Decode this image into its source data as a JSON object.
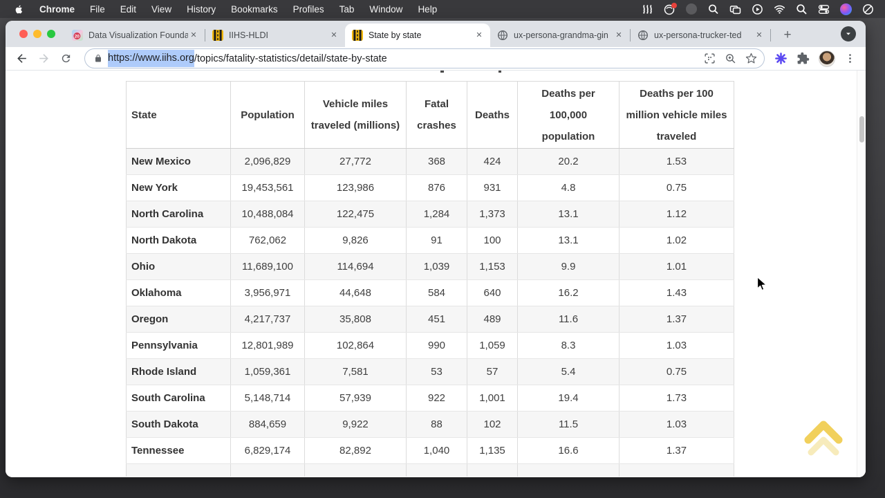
{
  "menubar": {
    "items": [
      "Chrome",
      "File",
      "Edit",
      "View",
      "History",
      "Bookmarks",
      "Profiles",
      "Tab",
      "Window",
      "Help"
    ],
    "status_icons": [
      "waves-icon",
      "badged-app-icon",
      "dimmed-app-icon",
      "zoom-lens-icon",
      "screen-mirroring-icon",
      "now-playing-icon",
      "wifi-icon",
      "spotlight-icon",
      "control-center-icon",
      "siri-icon",
      "focus-icon"
    ]
  },
  "tabbar": {
    "tabs": [
      {
        "title": "Data Visualization Founda",
        "favicon": "course-20-icon",
        "badge": "20"
      },
      {
        "title": "IIHS-HLDI",
        "favicon": "road-icon"
      },
      {
        "title": "State by state",
        "favicon": "road-icon",
        "active": true
      },
      {
        "title": "ux-persona-grandma-gin",
        "favicon": "globe-icon"
      },
      {
        "title": "ux-persona-trucker-ted",
        "favicon": "globe-icon"
      }
    ],
    "close_label": "✕",
    "new_tab_label": "+"
  },
  "toolbar": {
    "url_selected": "https://www.iihs.org",
    "url_rest": "/topics/fatality-statistics/detail/state-by-state"
  },
  "table": {
    "columns": [
      "State",
      "Population",
      "Vehicle miles traveled (millions)",
      "Fatal crashes",
      "Deaths",
      "Deaths per 100,000 population",
      "Deaths per 100 million vehicle miles traveled"
    ],
    "rows": [
      [
        "New Mexico",
        "2,096,829",
        "27,772",
        "368",
        "424",
        "20.2",
        "1.53"
      ],
      [
        "New York",
        "19,453,561",
        "123,986",
        "876",
        "931",
        "4.8",
        "0.75"
      ],
      [
        "North Carolina",
        "10,488,084",
        "122,475",
        "1,284",
        "1,373",
        "13.1",
        "1.12"
      ],
      [
        "North Dakota",
        "762,062",
        "9,826",
        "91",
        "100",
        "13.1",
        "1.02"
      ],
      [
        "Ohio",
        "11,689,100",
        "114,694",
        "1,039",
        "1,153",
        "9.9",
        "1.01"
      ],
      [
        "Oklahoma",
        "3,956,971",
        "44,648",
        "584",
        "640",
        "16.2",
        "1.43"
      ],
      [
        "Oregon",
        "4,217,737",
        "35,808",
        "451",
        "489",
        "11.6",
        "1.37"
      ],
      [
        "Pennsylvania",
        "12,801,989",
        "102,864",
        "990",
        "1,059",
        "8.3",
        "1.03"
      ],
      [
        "Rhode Island",
        "1,059,361",
        "7,581",
        "53",
        "57",
        "5.4",
        "0.75"
      ],
      [
        "South Carolina",
        "5,148,714",
        "57,939",
        "922",
        "1,001",
        "19.4",
        "1.73"
      ],
      [
        "South Dakota",
        "884,659",
        "9,922",
        "88",
        "102",
        "11.5",
        "1.03"
      ],
      [
        "Tennessee",
        "6,829,174",
        "82,892",
        "1,040",
        "1,135",
        "16.6",
        "1.37"
      ]
    ]
  },
  "colors": {
    "accent_selection": "#aecbfa",
    "zebra_row": "#f6f6f6",
    "gold_chevron": "#eec83f",
    "tabstrip": "#dee1e6",
    "menubar": "#39393c",
    "extension_accent": "#5b49f2"
  }
}
